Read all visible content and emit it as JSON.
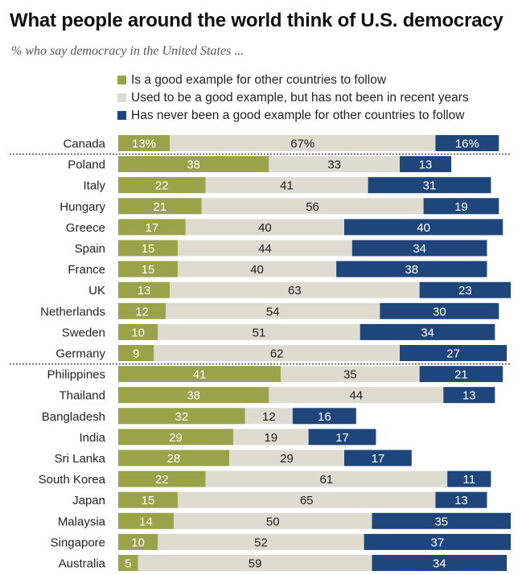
{
  "header": {
    "title": "What people around the world think of U.S. democracy",
    "subtitle": "% who say democracy in the United States ..."
  },
  "colors": {
    "good": "#9aa24a",
    "used_to": "#dedbd0",
    "never": "#1f467b",
    "text_dark": "#222222",
    "text_light": "#ffffff"
  },
  "chart_data": {
    "type": "bar",
    "stacked": true,
    "orientation": "horizontal",
    "title": "What people around the world think of U.S. democracy",
    "subtitle": "% who say democracy in the United States ...",
    "legend_position": "top",
    "series": [
      {
        "key": "good",
        "name": "Is a good example for other countries to follow"
      },
      {
        "key": "used_to",
        "name": "Used to be a good example, but has not been in recent years"
      },
      {
        "key": "never",
        "name": "Has never been a good example for other countries to follow"
      }
    ],
    "groups": [
      {
        "rows": [
          {
            "country": "Canada",
            "good": 13,
            "used_to": 67,
            "never": 16,
            "labels": [
              "13%",
              "67%",
              "16%"
            ]
          }
        ]
      },
      {
        "rows": [
          {
            "country": "Poland",
            "good": 38,
            "used_to": 33,
            "never": 13
          },
          {
            "country": "Italy",
            "good": 22,
            "used_to": 41,
            "never": 31
          },
          {
            "country": "Hungary",
            "good": 21,
            "used_to": 56,
            "never": 19
          },
          {
            "country": "Greece",
            "good": 17,
            "used_to": 40,
            "never": 40
          },
          {
            "country": "Spain",
            "good": 15,
            "used_to": 44,
            "never": 34
          },
          {
            "country": "France",
            "good": 15,
            "used_to": 40,
            "never": 38
          },
          {
            "country": "UK",
            "good": 13,
            "used_to": 63,
            "never": 23
          },
          {
            "country": "Netherlands",
            "good": 12,
            "used_to": 54,
            "never": 30
          },
          {
            "country": "Sweden",
            "good": 10,
            "used_to": 51,
            "never": 34
          },
          {
            "country": "Germany",
            "good": 9,
            "used_to": 62,
            "never": 27
          }
        ]
      },
      {
        "rows": [
          {
            "country": "Philippines",
            "good": 41,
            "used_to": 35,
            "never": 21
          },
          {
            "country": "Thailand",
            "good": 38,
            "used_to": 44,
            "never": 13
          },
          {
            "country": "Bangladesh",
            "good": 32,
            "used_to": 12,
            "never": 16
          },
          {
            "country": "India",
            "good": 29,
            "used_to": 19,
            "never": 17
          },
          {
            "country": "Sri Lanka",
            "good": 28,
            "used_to": 29,
            "never": 17
          },
          {
            "country": "South Korea",
            "good": 22,
            "used_to": 61,
            "never": 11
          },
          {
            "country": "Japan",
            "good": 15,
            "used_to": 65,
            "never": 13
          },
          {
            "country": "Malaysia",
            "good": 14,
            "used_to": 50,
            "never": 35
          },
          {
            "country": "Singapore",
            "good": 10,
            "used_to": 52,
            "never": 37
          },
          {
            "country": "Australia",
            "good": 5,
            "used_to": 59,
            "never": 34
          }
        ]
      }
    ]
  }
}
